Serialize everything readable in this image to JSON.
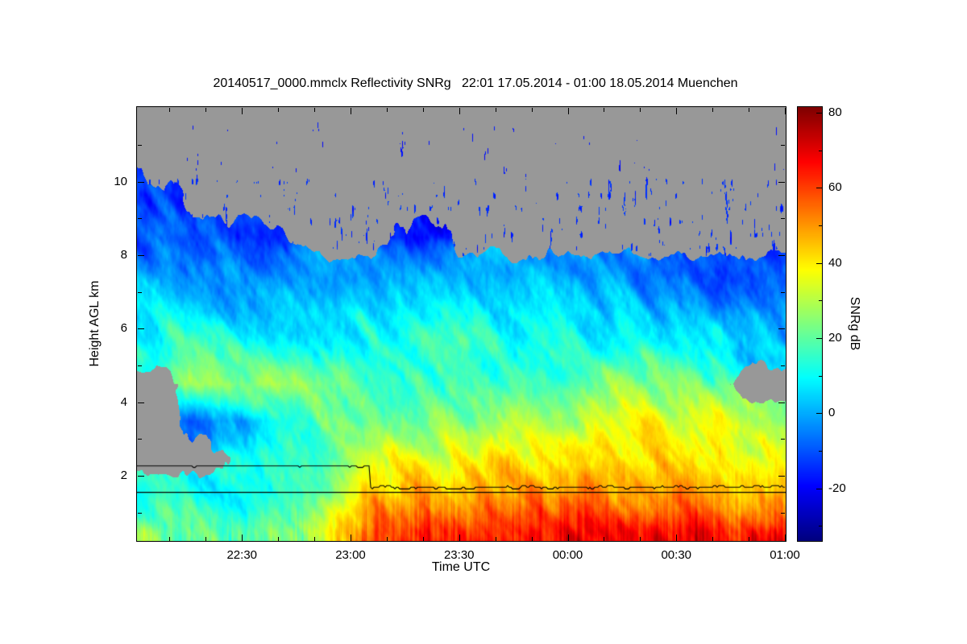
{
  "title": "20140517_0000.mmclx Reflectivity SNRg   22:01 17.05.2014 - 01:00 18.05.2014 Muenchen",
  "chart_data": {
    "type": "heatmap",
    "title": "20140517_0000.mmclx Reflectivity SNRg   22:01 17.05.2014 - 01:00 18.05.2014 Muenchen",
    "xlabel": "Time UTC",
    "ylabel": "Height AGL km",
    "x_start_label": "22:01",
    "x_end_label": "01:00",
    "x_ticks": [
      "22:30",
      "23:00",
      "23:30",
      "00:00",
      "00:30",
      "01:00"
    ],
    "x_tick_minutes": [
      29,
      59,
      89,
      119,
      149,
      179
    ],
    "x_range_minutes": [
      0,
      179
    ],
    "y_ticks": [
      2,
      4,
      6,
      8,
      10
    ],
    "y_range_km": [
      0.25,
      12.03
    ],
    "grid_on": false,
    "colorbar": {
      "label": "SNRg dB",
      "ticks": [
        80,
        60,
        40,
        20,
        0,
        -20
      ],
      "range": [
        -34,
        81.5
      ],
      "colormap": "jet"
    },
    "nodata_color": "#989898",
    "overlay_lines": {
      "flat_km": 1.56,
      "stepped_initial_km": 2.28,
      "step_minute": 64.5,
      "stepped_after_km": 1.7
    },
    "grid": {
      "time_minutes": [
        4,
        19,
        34,
        49,
        64,
        79,
        94,
        109,
        124,
        139,
        154,
        169
      ],
      "heights_km": [
        0.5,
        1.5,
        2.5,
        3.5,
        4.5,
        5.5,
        6.5,
        7.5,
        8.5,
        9.5,
        11
      ],
      "snr_db": [
        [
          24,
          20,
          22,
          30,
          55,
          62,
          60,
          62,
          62,
          63,
          62,
          60
        ],
        [
          14,
          10,
          12,
          15,
          45,
          50,
          48,
          50,
          50,
          52,
          50,
          48
        ],
        [
          null,
          null,
          8,
          14,
          36,
          36,
          38,
          38,
          40,
          42,
          40,
          38
        ],
        [
          null,
          -4,
          4,
          20,
          26,
          22,
          25,
          28,
          30,
          35,
          35,
          28
        ],
        [
          null,
          24,
          28,
          25,
          18,
          16,
          18,
          20,
          22,
          25,
          20,
          null
        ],
        [
          14,
          18,
          16,
          12,
          12,
          14,
          15,
          12,
          10,
          12,
          8,
          5
        ],
        [
          8,
          5,
          3,
          6,
          8,
          6,
          10,
          8,
          6,
          4,
          0,
          -2
        ],
        [
          0,
          -2,
          -5,
          -5,
          0,
          -3,
          2,
          0,
          -2,
          -5,
          -8,
          -10
        ],
        [
          -10,
          -12,
          -15,
          null,
          null,
          -18,
          null,
          null,
          null,
          null,
          null,
          null
        ],
        [
          -15,
          null,
          null,
          null,
          null,
          null,
          null,
          null,
          null,
          null,
          null,
          null
        ],
        [
          null,
          null,
          null,
          null,
          null,
          null,
          null,
          null,
          null,
          null,
          null,
          null
        ]
      ]
    }
  }
}
